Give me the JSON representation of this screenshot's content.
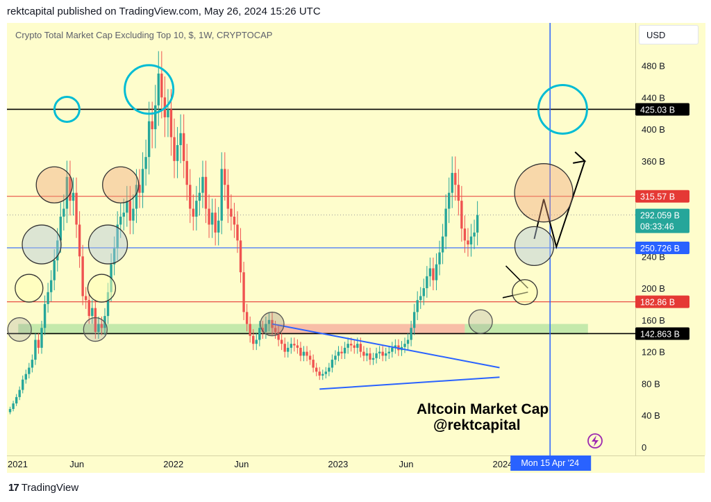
{
  "header": {
    "published_line": "rektcapital published on TradingView.com, May 26, 2024 15:26 UTC"
  },
  "chart_title": "Crypto Total Market Cap Excluding Top 10, $, 1W, CRYPTOCAP",
  "currency_button": "USD",
  "footer": {
    "brand": "TradingView",
    "mark": "17"
  },
  "watermark": {
    "line1": "Altcoin Market Cap",
    "line2": "@rektcapital"
  },
  "colors": {
    "plot_background": "#fefdcc",
    "bull": "#26a69a",
    "bear": "#ef5350",
    "blue_line": "#2962ff",
    "trendline_blue": "#2962ff",
    "red_level": "#e53935",
    "black_level": "#000000",
    "cyan_circle": "#00bcd4",
    "green_zone": "#b5e3a3",
    "red_zone": "#f7b3a0"
  },
  "icons": {
    "lightning": "lightning-icon"
  },
  "chart_data": {
    "type": "candlestick",
    "title": "Crypto Total Market Cap Excluding Top 10, $, 1W, CRYPTOCAP",
    "y_unit": "B",
    "ylim": [
      0,
      525
    ],
    "y_ticks": [
      {
        "value": 0,
        "label": "0"
      },
      {
        "value": 40,
        "label": "40 B"
      },
      {
        "value": 80,
        "label": "80 B"
      },
      {
        "value": 120,
        "label": "120 B"
      },
      {
        "value": 160,
        "label": "160 B"
      },
      {
        "value": 200,
        "label": "200 B"
      },
      {
        "value": 240,
        "label": "240 B"
      },
      {
        "value": 360,
        "label": "360 B"
      },
      {
        "value": 400,
        "label": "400 B"
      },
      {
        "value": 440,
        "label": "440 B"
      },
      {
        "value": 480,
        "label": "480 B"
      }
    ],
    "x_ticks": [
      {
        "date": "2021-01-01",
        "label": "2021"
      },
      {
        "date": "2021-06-01",
        "label": "Jun"
      },
      {
        "date": "2022-01-01",
        "label": "2022"
      },
      {
        "date": "2022-06-01",
        "label": "Jun"
      },
      {
        "date": "2023-01-01",
        "label": "2023"
      },
      {
        "date": "2023-06-01",
        "label": "Jun"
      },
      {
        "date": "2024-01-01",
        "label": "2024"
      }
    ],
    "x_range": [
      "2020-12-28",
      "2024-10-21"
    ],
    "crosshair": {
      "date": "2024-04-15",
      "label": "Mon 15 Apr '24"
    },
    "horizontal_levels": [
      {
        "value": 425.03,
        "label": "425.03 B",
        "color": "#000000"
      },
      {
        "value": 315.57,
        "label": "315.57 B",
        "color": "#e53935"
      },
      {
        "value": 250.726,
        "label": "250.726 B",
        "color": "#2962ff"
      },
      {
        "value": 182.86,
        "label": "182.86 B",
        "color": "#e53935"
      },
      {
        "value": 142.863,
        "label": "142.863 B",
        "color": "#000000"
      }
    ],
    "current_price": {
      "value": 292.059,
      "label": "292.059 B",
      "countdown": "08:33:46",
      "color": "#26a69a"
    },
    "closes": [
      48,
      55,
      63,
      72,
      85,
      92,
      100,
      110,
      135,
      125,
      150,
      180,
      195,
      210,
      235,
      260,
      290,
      300,
      340,
      310,
      320,
      280,
      240,
      190,
      185,
      165,
      175,
      145,
      155,
      150,
      165,
      195,
      230,
      250,
      280,
      290,
      295,
      310,
      285,
      300,
      330,
      320,
      350,
      365,
      410,
      400,
      430,
      470,
      440,
      415,
      425,
      390,
      360,
      380,
      395,
      360,
      330,
      300,
      290,
      310,
      320,
      340,
      300,
      280,
      295,
      270,
      285,
      350,
      330,
      300,
      290,
      280,
      260,
      220,
      170,
      155,
      140,
      130,
      135,
      150,
      145,
      155,
      160,
      150,
      145,
      135,
      130,
      120,
      125,
      130,
      128,
      125,
      115,
      120,
      115,
      110,
      100,
      95,
      90,
      92,
      95,
      100,
      110,
      115,
      120,
      118,
      125,
      130,
      128,
      125,
      130,
      120,
      115,
      118,
      110,
      112,
      118,
      120,
      115,
      118,
      120,
      125,
      128,
      122,
      126,
      130,
      135,
      150,
      170,
      185,
      190,
      200,
      215,
      225,
      210,
      230,
      245,
      265,
      300,
      320,
      345,
      330,
      310,
      275,
      260,
      255,
      265,
      270,
      292
    ]
  }
}
